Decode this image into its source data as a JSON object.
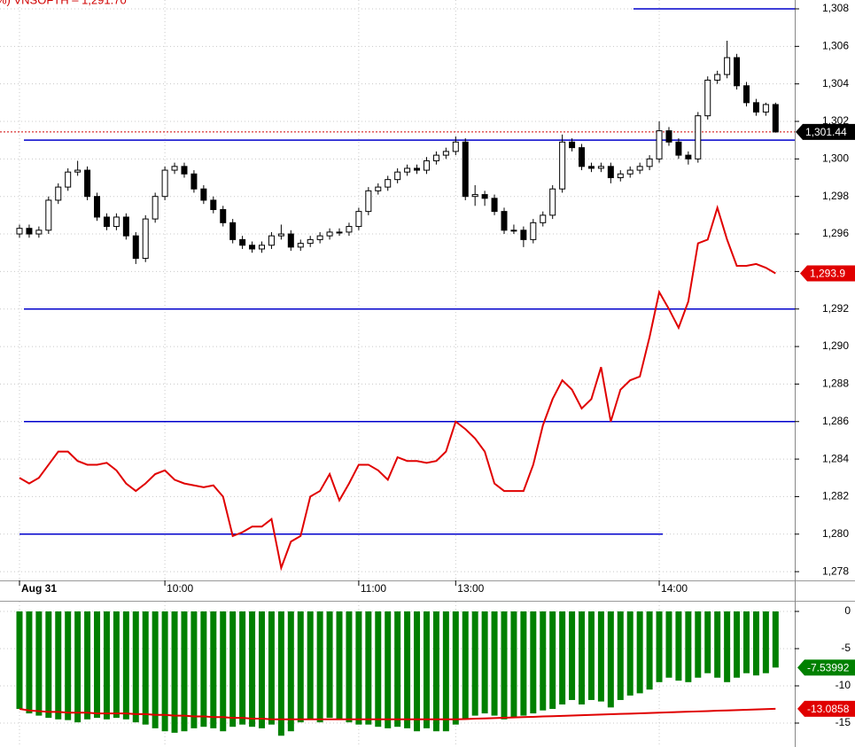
{
  "chart_data": [
    {
      "type": "candlestick",
      "title": "%) VNSOFTH – 1,291.70",
      "categories": [
        "Aug 31",
        null,
        null,
        null,
        null,
        null,
        null,
        null,
        null,
        null,
        null,
        null,
        null,
        null,
        null,
        "10:00",
        null,
        null,
        null,
        null,
        null,
        null,
        null,
        null,
        null,
        null,
        null,
        null,
        null,
        null,
        null,
        null,
        null,
        null,
        null,
        "11:00",
        null,
        null,
        null,
        null,
        null,
        null,
        null,
        null,
        null,
        "13:00",
        null,
        null,
        null,
        null,
        null,
        null,
        null,
        null,
        null,
        null,
        null,
        null,
        null,
        null,
        null,
        null,
        null,
        null,
        null,
        null,
        "14:00",
        null,
        null,
        null,
        null,
        null,
        null,
        null,
        null,
        null,
        null,
        null,
        null
      ],
      "candles": {
        "color": "#000000",
        "last_label": "1,301.44",
        "open": [
          1296.0,
          1296.3,
          1296.0,
          1296.2,
          1297.8,
          1298.5,
          1299.3,
          1299.4,
          1298.0,
          1296.9,
          1296.4,
          1296.9,
          1295.9,
          1294.7,
          1296.8,
          1298.0,
          1299.4,
          1299.6,
          1299.2,
          1298.4,
          1297.8,
          1297.3,
          1296.6,
          1295.7,
          1295.4,
          1295.2,
          1295.4,
          1295.9,
          1296.0,
          1295.3,
          1295.5,
          1295.7,
          1295.9,
          1296.1,
          1296.1,
          1296.4,
          1297.2,
          1298.3,
          1298.5,
          1298.9,
          1299.3,
          1299.5,
          1299.4,
          1299.9,
          1300.2,
          1300.4,
          1300.9,
          1298.0,
          1298.1,
          1297.9,
          1297.2,
          1296.2,
          1296.2,
          1295.7,
          1296.6,
          1297.0,
          1298.4,
          1300.9,
          1300.6,
          1299.6,
          1299.5,
          1299.6,
          1299.0,
          1299.2,
          1299.4,
          1299.6,
          1300.0,
          1301.5,
          1300.9,
          1300.2,
          1300.0,
          1302.3,
          1304.2,
          1304.5,
          1305.4,
          1303.9,
          1303.0,
          1302.5,
          1302.9
        ],
        "high": [
          1296.5,
          1296.5,
          1296.4,
          1298.0,
          1298.7,
          1299.5,
          1299.9,
          1299.6,
          1298.2,
          1297.1,
          1297.1,
          1297.1,
          1296.1,
          1297.0,
          1298.2,
          1299.6,
          1299.8,
          1299.8,
          1299.4,
          1298.6,
          1298.0,
          1297.5,
          1296.8,
          1295.9,
          1295.6,
          1295.6,
          1296.1,
          1296.5,
          1296.2,
          1295.7,
          1295.9,
          1296.1,
          1296.3,
          1296.3,
          1296.6,
          1297.4,
          1298.5,
          1298.7,
          1299.1,
          1299.5,
          1299.7,
          1299.7,
          1300.1,
          1300.4,
          1300.6,
          1301.2,
          1301.1,
          1298.6,
          1298.3,
          1298.1,
          1297.4,
          1296.5,
          1296.4,
          1296.8,
          1297.2,
          1298.6,
          1301.3,
          1301.1,
          1300.8,
          1299.8,
          1299.8,
          1299.8,
          1299.4,
          1299.6,
          1299.8,
          1300.2,
          1302.0,
          1301.7,
          1301.1,
          1300.4,
          1302.5,
          1304.4,
          1304.7,
          1306.3,
          1305.6,
          1304.1,
          1303.2,
          1303.0,
          1303.0
        ],
        "low": [
          1295.8,
          1295.8,
          1295.8,
          1296.0,
          1297.6,
          1298.3,
          1299.1,
          1297.8,
          1296.7,
          1296.2,
          1296.2,
          1295.7,
          1294.4,
          1294.5,
          1296.6,
          1297.8,
          1299.2,
          1299.0,
          1298.2,
          1297.6,
          1297.1,
          1296.4,
          1295.5,
          1295.2,
          1295.0,
          1295.0,
          1295.2,
          1295.7,
          1295.1,
          1295.1,
          1295.3,
          1295.5,
          1295.7,
          1295.9,
          1295.9,
          1296.2,
          1297.0,
          1298.1,
          1298.3,
          1298.7,
          1299.1,
          1299.2,
          1299.2,
          1299.7,
          1300.0,
          1300.2,
          1297.8,
          1297.5,
          1297.5,
          1297.0,
          1296.0,
          1296.0,
          1295.3,
          1295.5,
          1296.4,
          1296.8,
          1298.2,
          1300.4,
          1299.4,
          1299.3,
          1299.3,
          1298.7,
          1298.8,
          1299.0,
          1299.2,
          1299.4,
          1299.8,
          1300.7,
          1300.0,
          1299.7,
          1299.8,
          1302.1,
          1304.0,
          1304.3,
          1303.7,
          1302.8,
          1302.3,
          1302.3,
          1301.4
        ],
        "close": [
          1296.3,
          1296.0,
          1296.2,
          1297.8,
          1298.5,
          1299.3,
          1299.4,
          1298.0,
          1296.9,
          1296.4,
          1296.9,
          1295.9,
          1294.7,
          1296.8,
          1298.0,
          1299.4,
          1299.6,
          1299.2,
          1298.4,
          1297.8,
          1297.3,
          1296.6,
          1295.7,
          1295.4,
          1295.2,
          1295.4,
          1295.9,
          1296.0,
          1295.3,
          1295.5,
          1295.7,
          1295.9,
          1296.1,
          1296.1,
          1296.4,
          1297.2,
          1298.3,
          1298.5,
          1298.9,
          1299.3,
          1299.5,
          1299.4,
          1299.9,
          1300.2,
          1300.4,
          1300.9,
          1298.0,
          1298.1,
          1297.9,
          1297.2,
          1296.2,
          1296.2,
          1295.7,
          1296.6,
          1297.0,
          1298.4,
          1300.9,
          1300.6,
          1299.6,
          1299.5,
          1299.6,
          1299.0,
          1299.2,
          1299.4,
          1299.6,
          1300.0,
          1301.5,
          1300.9,
          1300.2,
          1300.0,
          1302.3,
          1304.2,
          1304.5,
          1305.4,
          1303.9,
          1303.0,
          1302.5,
          1302.9,
          1301.44
        ]
      },
      "series": [
        {
          "color": "#e00000",
          "last_label": "1,293.9",
          "values": [
            1283.0,
            1282.7,
            1283.0,
            1283.7,
            1284.4,
            1284.4,
            1283.9,
            1283.7,
            1283.7,
            1283.8,
            1283.4,
            1282.7,
            1282.3,
            1282.7,
            1283.2,
            1283.4,
            1282.9,
            1282.7,
            1282.6,
            1282.5,
            1282.6,
            1282.0,
            1279.9,
            1280.1,
            1280.4,
            1280.4,
            1280.8,
            1278.2,
            1279.6,
            1279.9,
            1282.0,
            1282.3,
            1283.2,
            1281.8,
            1282.7,
            1283.7,
            1283.7,
            1283.4,
            1282.9,
            1284.1,
            1283.9,
            1283.9,
            1283.8,
            1283.9,
            1284.4,
            1286.0,
            1285.6,
            1285.1,
            1284.4,
            1282.7,
            1282.3,
            1282.3,
            1282.3,
            1283.7,
            1285.8,
            1287.2,
            1288.2,
            1287.7,
            1286.7,
            1287.2,
            1288.9,
            1286.0,
            1287.7,
            1288.2,
            1288.4,
            1290.5,
            1292.9,
            1292.0,
            1291.0,
            1292.4,
            1295.5,
            1295.7,
            1297.4,
            1295.7,
            1294.3,
            1294.3,
            1294.4,
            1294.2,
            1293.9
          ]
        }
      ],
      "levels": {
        "color": "#0000cc",
        "values": [
          1308,
          1301,
          1292,
          1286,
          1280
        ]
      },
      "ylim": [
        1277.5,
        1308.5
      ],
      "yticks": [
        {
          "value": 1278,
          "label": "1,278"
        },
        {
          "value": 1280,
          "label": "1,280"
        },
        {
          "value": 1282,
          "label": "1,282"
        },
        {
          "value": 1284,
          "label": "1,284"
        },
        {
          "value": 1286,
          "label": "1,286"
        },
        {
          "value": 1288,
          "label": "1,288"
        },
        {
          "value": 1290,
          "label": "1,290"
        },
        {
          "value": 1292,
          "label": "1,292"
        },
        {
          "value": 1294,
          "label": "1,294"
        },
        {
          "value": 1296,
          "label": "1,296"
        },
        {
          "value": 1298,
          "label": "1,298"
        },
        {
          "value": 1300,
          "label": "1,300"
        },
        {
          "value": 1302,
          "label": "1,302"
        },
        {
          "value": 1304,
          "label": "1,304"
        },
        {
          "value": 1306,
          "label": "1,306"
        },
        {
          "value": 1308,
          "label": "1,308"
        }
      ],
      "grid": true
    },
    {
      "type": "bar",
      "series": [
        {
          "type": "bar",
          "color": "#008000",
          "last_label": "-7.53992",
          "values": [
            -13.1,
            -13.7,
            -14.0,
            -14.3,
            -14.5,
            -14.6,
            -14.9,
            -14.5,
            -14.3,
            -14.5,
            -14.3,
            -14.5,
            -14.9,
            -15.2,
            -15.7,
            -16.1,
            -16.3,
            -16.1,
            -15.7,
            -15.5,
            -15.7,
            -16.1,
            -15.5,
            -15.2,
            -15.5,
            -15.7,
            -15.2,
            -16.7,
            -16.1,
            -14.9,
            -14.5,
            -14.9,
            -14.3,
            -14.5,
            -14.9,
            -15.2,
            -15.2,
            -15.5,
            -15.7,
            -15.5,
            -15.7,
            -16.1,
            -15.7,
            -16.1,
            -16.1,
            -15.2,
            -14.5,
            -14.0,
            -13.7,
            -14.0,
            -14.5,
            -14.3,
            -14.0,
            -13.7,
            -13.3,
            -13.1,
            -12.5,
            -11.9,
            -12.5,
            -11.9,
            -12.1,
            -12.9,
            -11.9,
            -11.3,
            -11.0,
            -10.5,
            -9.5,
            -8.9,
            -9.3,
            -9.5,
            -8.9,
            -8.3,
            -8.9,
            -9.5,
            -8.9,
            -8.3,
            -8.6,
            -8.3,
            -7.53992
          ]
        },
        {
          "type": "line",
          "color": "#e00000",
          "last_label": "-13.0858",
          "values": [
            -13.1,
            -13.3,
            -13.4,
            -13.5,
            -13.5,
            -13.6,
            -13.6,
            -13.6,
            -13.7,
            -13.7,
            -13.7,
            -13.7,
            -13.8,
            -13.8,
            -13.9,
            -13.9,
            -14.0,
            -14.0,
            -14.1,
            -14.1,
            -14.2,
            -14.2,
            -14.3,
            -14.3,
            -14.4,
            -14.4,
            -14.5,
            -14.5,
            -14.5,
            -14.5,
            -14.5,
            -14.5,
            -14.5,
            -14.5,
            -14.5,
            -14.5,
            -14.5,
            -14.5,
            -14.5,
            -14.5,
            -14.5,
            -14.5,
            -14.5,
            -14.5,
            -14.5,
            -14.5,
            -14.46,
            -14.41,
            -14.37,
            -14.33,
            -14.29,
            -14.24,
            -14.2,
            -14.16,
            -14.11,
            -14.07,
            -14.03,
            -13.99,
            -13.94,
            -13.9,
            -13.86,
            -13.81,
            -13.77,
            -13.73,
            -13.69,
            -13.64,
            -13.6,
            -13.56,
            -13.51,
            -13.47,
            -13.43,
            -13.39,
            -13.34,
            -13.3,
            -13.26,
            -13.21,
            -13.17,
            -13.13,
            -13.0858
          ]
        }
      ],
      "ylim": [
        -18,
        1
      ],
      "yticks": [
        0,
        -5,
        -10,
        -15
      ],
      "grid": true
    }
  ]
}
